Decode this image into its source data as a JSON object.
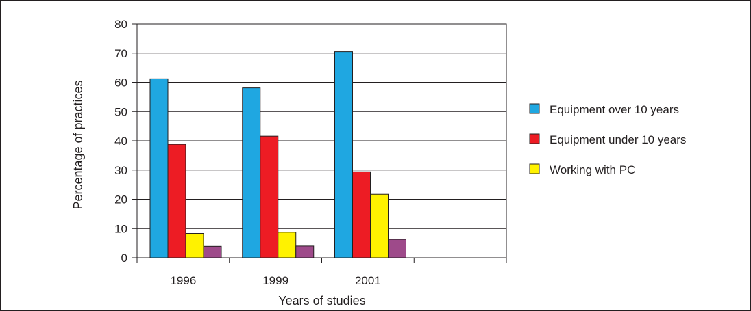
{
  "chart_data": {
    "type": "bar",
    "title": "",
    "xlabel": "Years of studies",
    "ylabel": "Percentage of practices",
    "categories": [
      "1996",
      "1999",
      "2001",
      ""
    ],
    "ylim": [
      0,
      80
    ],
    "yticks": [
      0,
      10,
      20,
      30,
      40,
      50,
      60,
      70,
      80
    ],
    "grid": true,
    "legend_position": "right",
    "series": [
      {
        "name": "Equipment over 10 years",
        "color": "#1fa7e1",
        "values": [
          61.2,
          58.1,
          70.5,
          null
        ]
      },
      {
        "name": "Equipment under 10 years",
        "color": "#ed1c24",
        "values": [
          38.8,
          41.6,
          29.4,
          null
        ]
      },
      {
        "name": "Working with PC",
        "color": "#fff200",
        "values": [
          8.3,
          8.7,
          21.7,
          null
        ]
      },
      {
        "name": "",
        "color": "#9e4a8a",
        "values": [
          3.9,
          4.0,
          6.3,
          null
        ]
      }
    ]
  }
}
